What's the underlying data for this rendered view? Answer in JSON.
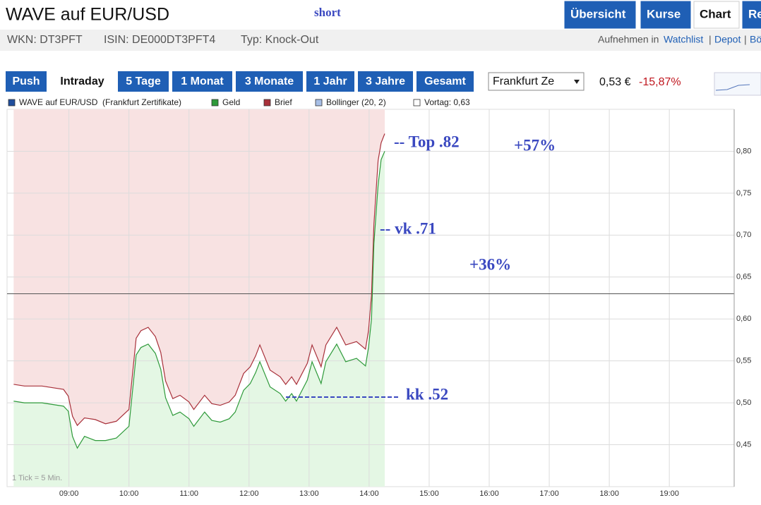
{
  "header": {
    "title": "WAVE auf EUR/USD",
    "note": "short",
    "tabs": [
      "Übersicht",
      "Kurse",
      "Chart",
      "Re"
    ],
    "info": [
      "WKN: DT3PFT",
      "ISIN: DE000DT3PFT4",
      "Typ: Knock-Out"
    ],
    "links_prefix": "Aufnehmen in",
    "links": [
      "Watchlist",
      "Depot",
      "Bö"
    ],
    "separator": "|"
  },
  "toolbar": {
    "periods": [
      "Push",
      "Intraday",
      "5 Tage",
      "1 Monat",
      "3 Monate",
      "1 Jahr",
      "3 Jahre",
      "Gesamt"
    ],
    "exchange": "Frankfurt Ze",
    "price": "0,53 €",
    "change": "-15,87%"
  },
  "chart_data": {
    "type": "line",
    "x": [
      8.08,
      8.26,
      8.55,
      8.91,
      8.99,
      9.06,
      9.14,
      9.26,
      9.44,
      9.61,
      9.79,
      10.0,
      10.12,
      10.2,
      10.32,
      10.44,
      10.53,
      10.61,
      10.73,
      10.85,
      11.0,
      11.08,
      11.26,
      11.38,
      11.52,
      11.67,
      11.77,
      11.91,
      12.02,
      12.11,
      12.18,
      12.35,
      12.52,
      12.61,
      12.71,
      12.79,
      12.97,
      13.05,
      13.2,
      13.28,
      13.46,
      13.61,
      13.79,
      13.94,
      13.99,
      14.04,
      14.08,
      14.15,
      14.2,
      14.26
    ],
    "series": [
      {
        "name": "WAVE auf EUR/USD  (Frankfurt Zertifikate)",
        "color": "#1f4e9c"
      },
      {
        "name": "Geld",
        "color": "#2e9a3a",
        "fill": "#e4f7e4",
        "values": [
          0.502,
          0.5,
          0.5,
          0.496,
          0.49,
          0.46,
          0.446,
          0.46,
          0.455,
          0.455,
          0.458,
          0.472,
          0.557,
          0.566,
          0.57,
          0.559,
          0.54,
          0.506,
          0.485,
          0.489,
          0.481,
          0.472,
          0.489,
          0.479,
          0.477,
          0.481,
          0.489,
          0.515,
          0.523,
          0.536,
          0.549,
          0.519,
          0.511,
          0.502,
          0.511,
          0.502,
          0.527,
          0.549,
          0.523,
          0.549,
          0.57,
          0.549,
          0.553,
          0.544,
          0.566,
          0.6,
          0.69,
          0.76,
          0.79,
          0.8
        ]
      },
      {
        "name": "Brief",
        "color": "#a8303a",
        "fill": "#f8e2e2",
        "values": [
          0.522,
          0.52,
          0.52,
          0.516,
          0.508,
          0.484,
          0.473,
          0.482,
          0.48,
          0.475,
          0.478,
          0.492,
          0.577,
          0.586,
          0.59,
          0.579,
          0.56,
          0.526,
          0.505,
          0.509,
          0.501,
          0.492,
          0.509,
          0.499,
          0.497,
          0.501,
          0.509,
          0.535,
          0.543,
          0.556,
          0.569,
          0.539,
          0.531,
          0.522,
          0.531,
          0.522,
          0.547,
          0.569,
          0.543,
          0.569,
          0.59,
          0.569,
          0.573,
          0.564,
          0.586,
          0.628,
          0.713,
          0.789,
          0.81,
          0.821
        ]
      },
      {
        "name": "Bollinger (20, 2)",
        "color": "#a7bfe6"
      },
      {
        "name": "Vortag: 0,63",
        "color": "#ffffff"
      }
    ],
    "reference_line": 0.63,
    "xlim": [
      7.97,
      20.08
    ],
    "xticks": [
      {
        "value": 9,
        "label": "09:00"
      },
      {
        "value": 10,
        "label": "10:00"
      },
      {
        "value": 11,
        "label": "11:00"
      },
      {
        "value": 12,
        "label": "12:00"
      },
      {
        "value": 13,
        "label": "13:00"
      },
      {
        "value": 14,
        "label": "14:00"
      },
      {
        "value": 15,
        "label": "15:00"
      },
      {
        "value": 16,
        "label": "16:00"
      },
      {
        "value": 17,
        "label": "17:00"
      },
      {
        "value": 18,
        "label": "18:00"
      },
      {
        "value": 19,
        "label": "19:00"
      }
    ],
    "ylim": [
      0.4,
      0.85
    ],
    "yticks": [
      {
        "value": 0.45,
        "label": "0,45"
      },
      {
        "value": 0.5,
        "label": "0,50"
      },
      {
        "value": 0.55,
        "label": "0,55"
      },
      {
        "value": 0.6,
        "label": "0,60"
      },
      {
        "value": 0.65,
        "label": "0,65"
      },
      {
        "value": 0.7,
        "label": "0,70"
      },
      {
        "value": 0.75,
        "label": "0,75"
      },
      {
        "value": 0.8,
        "label": "0,80"
      }
    ],
    "grid": true,
    "footnote": "1 Tick = 5 Min.",
    "annotations": [
      "-- Top .82",
      "+57%",
      "-- vk .71",
      "+36%",
      "kk .52"
    ],
    "annotation_color": "#3a48c0"
  }
}
